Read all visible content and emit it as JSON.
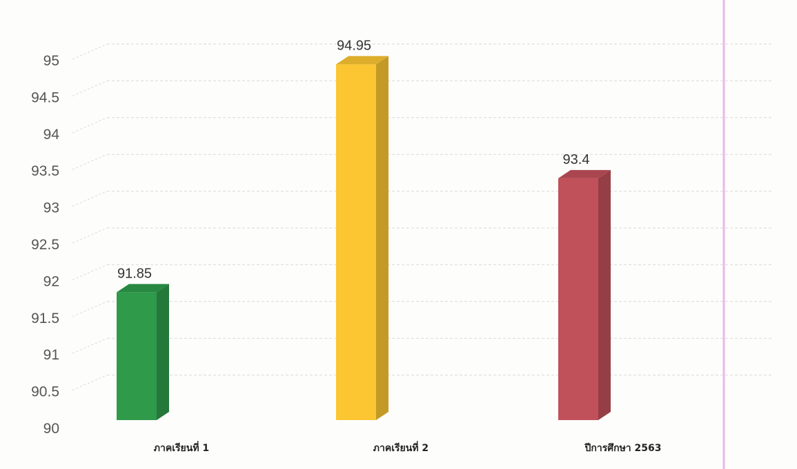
{
  "chart_data": {
    "type": "bar",
    "style": "3d-column",
    "categories": [
      "ภาคเรียนที่ 1",
      "ภาคเรียนที่ 2",
      "ปีการศึกษา 2563"
    ],
    "values": [
      91.85,
      94.95,
      93.4
    ],
    "data_labels": [
      "91.85",
      "94.95",
      "93.4"
    ],
    "colors": [
      "#2e9a4a",
      "#fbc632",
      "#c0505a"
    ],
    "ylim": [
      90,
      95
    ],
    "yticks": [
      90,
      90.5,
      91,
      91.5,
      92,
      92.5,
      93,
      93.5,
      94,
      94.5,
      95
    ],
    "ytick_labels": [
      "90",
      "90.5",
      "91",
      "91.5",
      "92",
      "92.5",
      "93",
      "93.5",
      "94",
      "94.5",
      "95"
    ],
    "grid": true,
    "legend": false
  },
  "colors": {
    "gridline": "#d9d9d9",
    "margin_line": "#e7b8e6"
  }
}
